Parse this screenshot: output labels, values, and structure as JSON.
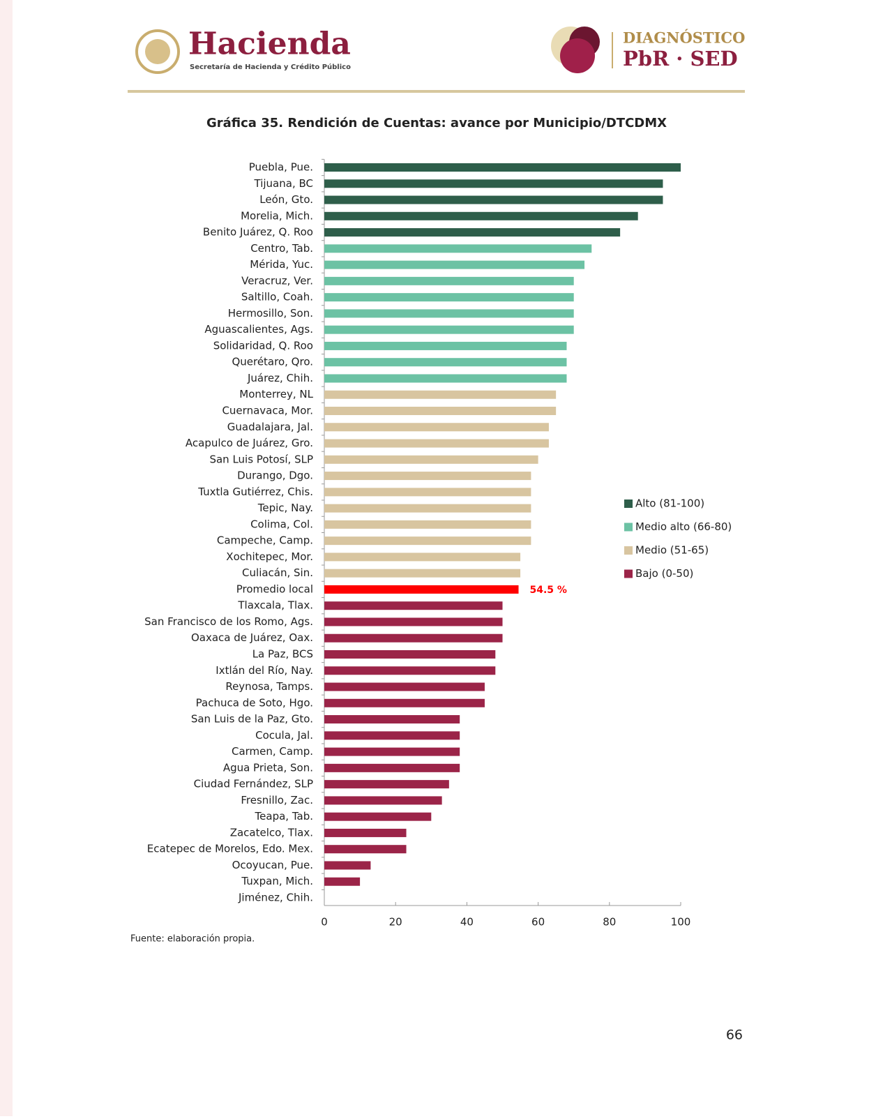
{
  "header": {
    "logo_title": "Hacienda",
    "logo_subtitle": "Secretaría de Hacienda y Crédito Público",
    "brand_top": "DIAGNÓSTICO",
    "brand_bottom": "PbR · SED"
  },
  "chart_data": {
    "type": "hbar",
    "title": "Gráfica 35. Rendición de Cuentas: avance por Municipio/DTCDMX",
    "categories": [
      "Puebla, Pue.",
      "Tijuana, BC",
      "León, Gto.",
      "Morelia, Mich.",
      "Benito Juárez, Q. Roo",
      "Centro, Tab.",
      "Mérida, Yuc.",
      "Veracruz, Ver.",
      "Saltillo, Coah.",
      "Hermosillo, Son.",
      "Aguascalientes, Ags.",
      "Solidaridad, Q. Roo",
      "Querétaro, Qro.",
      "Juárez, Chih.",
      "Monterrey, NL",
      "Cuernavaca, Mor.",
      "Guadalajara, Jal.",
      "Acapulco de Juárez, Gro.",
      "San Luis Potosí, SLP",
      "Durango, Dgo.",
      "Tuxtla Gutiérrez, Chis.",
      "Tepic, Nay.",
      "Colima, Col.",
      "Campeche, Camp.",
      "Xochitepec, Mor.",
      "Culiacán, Sin.",
      "Promedio local",
      "Tlaxcala, Tlax.",
      "San Francisco de los Romo, Ags.",
      "Oaxaca de Juárez, Oax.",
      "La Paz, BCS",
      "Ixtlán del Río, Nay.",
      "Reynosa, Tamps.",
      "Pachuca de Soto, Hgo.",
      "San Luis de la Paz, Gto.",
      "Cocula, Jal.",
      "Carmen, Camp.",
      "Agua Prieta, Son.",
      "Ciudad Fernández, SLP",
      "Fresnillo, Zac.",
      "Teapa, Tab.",
      "Zacatelco, Tlax.",
      "Ecatepec de Morelos, Edo. Mex.",
      "Ocoyucan, Pue.",
      "Tuxpan, Mich.",
      "Jiménez, Chih."
    ],
    "values": [
      100,
      95,
      95,
      88,
      83,
      75,
      73,
      70,
      70,
      70,
      70,
      68,
      68,
      68,
      65,
      65,
      63,
      63,
      60,
      58,
      58,
      58,
      58,
      58,
      55,
      55,
      54.5,
      50,
      50,
      50,
      48,
      48,
      45,
      45,
      38,
      38,
      38,
      38,
      35,
      33,
      30,
      23,
      23,
      13,
      10,
      0
    ],
    "value_labels": [
      null,
      null,
      null,
      null,
      null,
      null,
      null,
      null,
      null,
      null,
      null,
      null,
      null,
      null,
      null,
      null,
      null,
      null,
      null,
      null,
      null,
      null,
      null,
      null,
      null,
      null,
      "54.5 %",
      null,
      null,
      null,
      null,
      null,
      null,
      null,
      null,
      null,
      null,
      null,
      null,
      null,
      null,
      null,
      null,
      null,
      null,
      null
    ],
    "colors": [
      "#2e5e4a",
      "#2e5e4a",
      "#2e5e4a",
      "#2e5e4a",
      "#2e5e4a",
      "#6cc2a4",
      "#6cc2a4",
      "#6cc2a4",
      "#6cc2a4",
      "#6cc2a4",
      "#6cc2a4",
      "#6cc2a4",
      "#6cc2a4",
      "#6cc2a4",
      "#d8c5a0",
      "#d8c5a0",
      "#d8c5a0",
      "#d8c5a0",
      "#d8c5a0",
      "#d8c5a0",
      "#d8c5a0",
      "#d8c5a0",
      "#d8c5a0",
      "#d8c5a0",
      "#d8c5a0",
      "#d8c5a0",
      "#ff0000",
      "#9b2448",
      "#9b2448",
      "#9b2448",
      "#9b2448",
      "#9b2448",
      "#9b2448",
      "#9b2448",
      "#9b2448",
      "#9b2448",
      "#9b2448",
      "#9b2448",
      "#9b2448",
      "#9b2448",
      "#9b2448",
      "#9b2448",
      "#9b2448",
      "#9b2448",
      "#9b2448",
      "#9b2448"
    ],
    "legend": [
      {
        "name": "Alto (81-100)",
        "color": "#2e5e4a"
      },
      {
        "name": "Medio alto (66-80)",
        "color": "#6cc2a4"
      },
      {
        "name": "Medio (51-65)",
        "color": "#d8c5a0"
      },
      {
        "name": "Bajo (0-50)",
        "color": "#9b2448"
      }
    ],
    "xlim": [
      0,
      100
    ],
    "xticks": [
      0,
      20,
      40,
      60,
      80,
      100
    ]
  },
  "footer": {
    "source": "Fuente: elaboración propia.",
    "page": "66"
  }
}
